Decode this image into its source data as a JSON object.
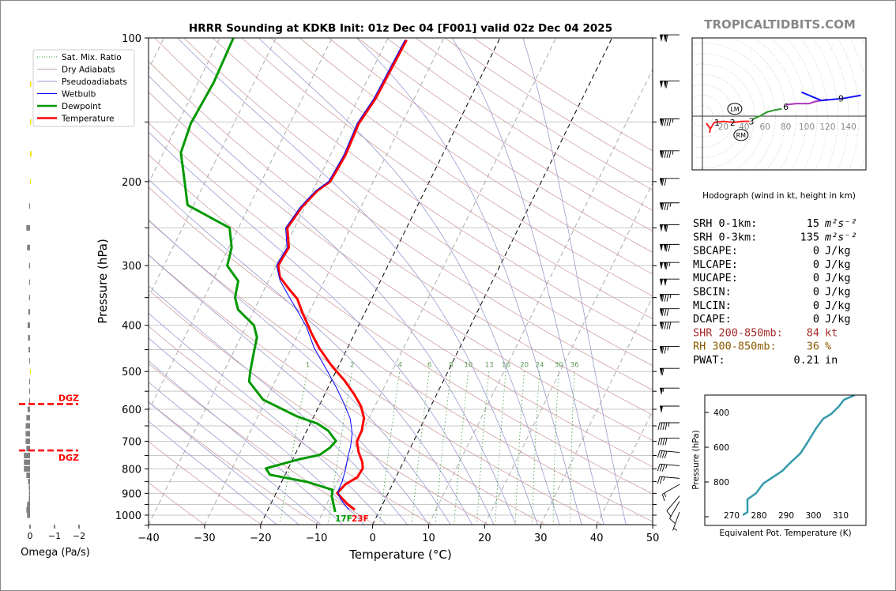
{
  "brand": "TROPICALTIDBITS.COM",
  "chart_data": [
    {
      "type": "line",
      "name": "skewt",
      "title": "HRRR Sounding at KDKB Init: 01z Dec 04 [F001] valid 02z Dec 04 2025",
      "xlabel": "Temperature (°C)",
      "ylabel": "Pressure (hPa)",
      "xlim": [
        -40,
        50
      ],
      "ylim": [
        1050,
        100
      ],
      "xticks": [
        -40,
        -30,
        -20,
        -10,
        0,
        10,
        20,
        30,
        40,
        50
      ],
      "xtick_labels": [
        "−40",
        "−30",
        "−20",
        "−10",
        "0",
        "10",
        "20",
        "30",
        "40",
        "50"
      ],
      "yticks": [
        100,
        200,
        300,
        400,
        500,
        600,
        700,
        800,
        900,
        1000
      ],
      "yticks_labels": [
        "100",
        "200",
        "300",
        "400",
        "500",
        "600",
        "700",
        "800",
        "900",
        "1000"
      ],
      "legend": {
        "placement": "top-left",
        "entries": [
          {
            "label": "Sat. Mix. Ratio",
            "color": "#2ca02c",
            "style": "dotted"
          },
          {
            "label": "Dry Adiabats",
            "color": "#c8a0a0",
            "style": "solid"
          },
          {
            "label": "Pseudoadiabats",
            "color": "#9a9ad0",
            "style": "solid"
          },
          {
            "label": "Wetbulb",
            "color": "#0000ff",
            "style": "solid"
          },
          {
            "label": "Dewpoint",
            "color": "#009900",
            "style": "bold"
          },
          {
            "label": "Temperature",
            "color": "#ff0000",
            "style": "bold"
          }
        ]
      },
      "mixing_ratio_labels": [
        "1",
        "2",
        "4",
        "6",
        "8",
        "10",
        "13",
        "16",
        "20",
        "24",
        "30",
        "36"
      ],
      "mixing_ratio_values": [
        1,
        2,
        4,
        6,
        8,
        10,
        13,
        16,
        20,
        24,
        30,
        36
      ],
      "surface_labels": {
        "dewpoint": "17F",
        "temperature": "23F"
      },
      "series": [
        {
          "name": "Temperature",
          "color": "#ff0000",
          "p": [
            974,
            948,
            899,
            862,
            833,
            798,
            775,
            737,
            701,
            665,
            626,
            591,
            560,
            523,
            487,
            447,
            416,
            377,
            352,
            336,
            317,
            300,
            289,
            275,
            250,
            226,
            209,
            200,
            188,
            176,
            151,
            134,
            101
          ],
          "t": [
            -4.5,
            -6.3,
            -9.1,
            -8.4,
            -6.9,
            -6.7,
            -7.3,
            -8.9,
            -10.1,
            -10.2,
            -10.9,
            -12.5,
            -14.6,
            -17.6,
            -21.2,
            -25.0,
            -27.7,
            -31.1,
            -33.3,
            -35.6,
            -38.3,
            -39.6,
            -39.5,
            -39.3,
            -41.3,
            -40.5,
            -39.2,
            -37.7,
            -37.5,
            -37.3,
            -37.7,
            -36.9,
            -36.5
          ]
        },
        {
          "name": "Dewpoint",
          "color": "#009900",
          "p": [
            985,
            912,
            885,
            852,
            823,
            798,
            764,
            748,
            723,
            699,
            665,
            643,
            621,
            573,
            525,
            500,
            453,
            424,
            400,
            371,
            350,
            323,
            300,
            275,
            250,
            224,
            199,
            174,
            151,
            124,
            100
          ],
          "t": [
            -7.8,
            -9.8,
            -10.2,
            -15.4,
            -22.7,
            -24.0,
            -18.9,
            -15.6,
            -14.4,
            -13.9,
            -16.2,
            -18.7,
            -23.0,
            -30.5,
            -34.6,
            -35.3,
            -36.4,
            -37.1,
            -38.7,
            -42.9,
            -44.5,
            -45.4,
            -48.7,
            -49.5,
            -51.6,
            -61.1,
            -63.8,
            -66.9,
            -67.7,
            -67.2,
            -67.6
          ]
        },
        {
          "name": "Wetbulb",
          "color": "#0000ff",
          "p": [
            974,
            920,
            892,
            852,
            801,
            760,
            718,
            673,
            628,
            586,
            539,
            492,
            447,
            403,
            376,
            348,
            322,
            300,
            289,
            275,
            250,
            226,
            209,
            200,
            188,
            176,
            151,
            134,
            101
          ],
          "t": [
            -5.6,
            -8.2,
            -9.1,
            -9.2,
            -9.7,
            -10.3,
            -10.8,
            -11.7,
            -13.3,
            -15.6,
            -18.6,
            -22.1,
            -25.9,
            -29.2,
            -31.9,
            -35.0,
            -38.0,
            -39.9,
            -39.8,
            -39.6,
            -41.6,
            -40.8,
            -39.5,
            -38.0,
            -37.8,
            -37.6,
            -38.0,
            -37.2,
            -36.8
          ]
        }
      ],
      "wind_barbs": {
        "p": [
          100,
          125,
          150,
          175,
          200,
          225,
          250,
          275,
          300,
          325,
          350,
          375,
          400,
          450,
          500,
          550,
          600,
          650,
          700,
          750,
          800,
          850,
          875,
          925,
          950,
          1000
        ],
        "speed_kt": [
          110,
          110,
          95,
          95,
          70,
          85,
          110,
          120,
          115,
          100,
          85,
          80,
          90,
          75,
          60,
          55,
          50,
          45,
          40,
          40,
          35,
          25,
          15,
          10,
          10,
          5
        ],
        "direction_deg": [
          270,
          270,
          270,
          270,
          270,
          270,
          270,
          270,
          270,
          270,
          270,
          270,
          270,
          270,
          270,
          270,
          270,
          270,
          270,
          275,
          275,
          275,
          240,
          220,
          210,
          200
        ]
      }
    },
    {
      "type": "bar",
      "name": "omega",
      "xlabel": "Omega (Pa/s)",
      "xticks": [
        0,
        -1,
        -2
      ],
      "xtick_labels": [
        "0",
        "−1",
        "−2"
      ],
      "dgz_label": "DGZ",
      "dgz_p": [
        585,
        732
      ],
      "p": [
        125,
        150,
        175,
        200,
        225,
        250,
        275,
        300,
        325,
        350,
        375,
        400,
        425,
        450,
        475,
        500,
        525,
        550,
        575,
        600,
        625,
        650,
        675,
        700,
        725,
        750,
        775,
        800,
        825,
        850,
        875,
        900,
        925,
        950,
        975,
        1000
      ],
      "values": [
        -0.05,
        -0.05,
        -0.06,
        -0.02,
        0.03,
        0.15,
        0.12,
        0.04,
        0.03,
        0.04,
        0.07,
        0.1,
        0.08,
        0.06,
        0.03,
        -0.02,
        0.01,
        0.02,
        0.03,
        0.1,
        0.15,
        0.18,
        0.18,
        0.18,
        0.15,
        0.25,
        0.25,
        0.25,
        0.15,
        0.08,
        0.05,
        0.04,
        0.05,
        0.12,
        0.15,
        0.12
      ],
      "positive_color": "#808080",
      "negative_color": "#f0e000"
    },
    {
      "type": "line",
      "name": "hodograph",
      "xlabel": "Hodograph (wind in kt, height in km)",
      "ring_labels": [
        "20",
        "40",
        "60",
        "80",
        "100",
        "120",
        "140"
      ],
      "ring_values": [
        20,
        40,
        60,
        80,
        100,
        120,
        140
      ],
      "segments": [
        {
          "color": "#ff2020",
          "u": [
            11,
            20,
            30,
            38,
            45
          ],
          "v": [
            -6,
            -5,
            -6,
            -5,
            -5
          ]
        },
        {
          "color": "#2a9a2a",
          "u": [
            48,
            55,
            62,
            70,
            76
          ],
          "v": [
            -3,
            0,
            4,
            6,
            7
          ]
        },
        {
          "color": "#b030c0",
          "u": [
            80,
            90,
            102,
            108,
            114,
            120
          ],
          "v": [
            11,
            12,
            12,
            14,
            15,
            16
          ]
        },
        {
          "color": "#1010ff",
          "u": [
            95,
            114,
            135,
            152
          ],
          "v": [
            23,
            15,
            17,
            20
          ]
        }
      ],
      "height_labels": [
        {
          "text": "1",
          "u": 14,
          "v": -6
        },
        {
          "text": "2",
          "u": 29,
          "v": -6
        },
        {
          "text": "3",
          "u": 47,
          "v": -5
        },
        {
          "text": "6",
          "u": 80,
          "v": 9
        },
        {
          "text": "9",
          "u": 133,
          "v": 17
        }
      ],
      "storm_motion": [
        {
          "text": "LM",
          "u": 31,
          "v": 7
        },
        {
          "text": "RM",
          "u": 37,
          "v": -18
        }
      ]
    },
    {
      "type": "line",
      "name": "theta-e",
      "xlabel": "Equivalent Pot. Temperature (K)",
      "ylabel": "Pressure (hPa)",
      "xticks": [
        270,
        280,
        290,
        300,
        310
      ],
      "xtick_labels": [
        "270",
        "280",
        "290",
        "300",
        "310"
      ],
      "yticks": [
        400,
        600,
        800
      ],
      "ytick_labels": [
        "400",
        "600",
        "800"
      ],
      "color": "#3399aa",
      "p": [
        991,
        973,
        900,
        864,
        809,
        782,
        736,
        691,
        636,
        573,
        491,
        436,
        409,
        364,
        327,
        300
      ],
      "theta_e": [
        274.1,
        275.8,
        275.8,
        279.0,
        281.6,
        284.2,
        288.6,
        291.4,
        295.2,
        297.8,
        301.0,
        303.6,
        306.5,
        309.4,
        311.2,
        315.2
      ]
    }
  ],
  "indices": [
    {
      "label": "SRH 0-1km:",
      "value": "15",
      "unit": "m²s⁻²",
      "color": "#000000"
    },
    {
      "label": "SRH 0-3km:",
      "value": "135",
      "unit": "m²s⁻²",
      "color": "#000000"
    },
    {
      "label": "SBCAPE:",
      "value": "0",
      "unit": "J/kg",
      "color": "#000000"
    },
    {
      "label": "MLCAPE:",
      "value": "0",
      "unit": "J/kg",
      "color": "#000000"
    },
    {
      "label": "MUCAPE:",
      "value": "0",
      "unit": "J/kg",
      "color": "#000000"
    },
    {
      "label": "SBCIN:",
      "value": "0",
      "unit": "J/kg",
      "color": "#000000"
    },
    {
      "label": "MLCIN:",
      "value": "0",
      "unit": "J/kg",
      "color": "#000000"
    },
    {
      "label": "DCAPE:",
      "value": "0",
      "unit": "J/kg",
      "color": "#000000"
    },
    {
      "label": "SHR 200-850mb:",
      "value": "84",
      "unit": "kt",
      "color": "#a52a2a"
    },
    {
      "label": "RH 300-850mb:",
      "value": "36",
      "unit": "%",
      "color": "#8b5a00"
    },
    {
      "label": "PWAT:",
      "value": "0.21",
      "unit": "in",
      "color": "#000000"
    }
  ]
}
